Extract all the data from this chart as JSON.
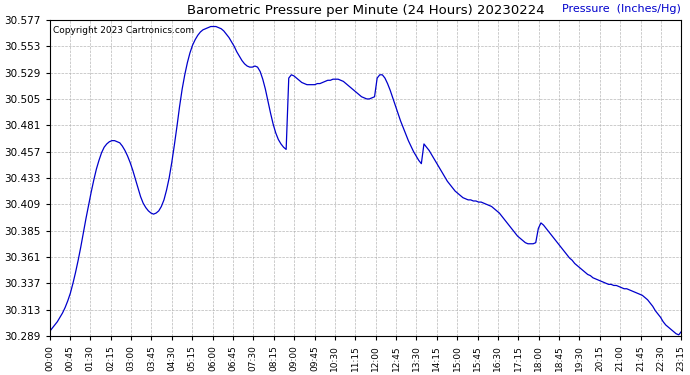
{
  "title": "Barometric Pressure per Minute (24 Hours) 20230224",
  "ylabel": "Pressure  (Inches/Hg)",
  "copyright_text": "Copyright 2023 Cartronics.com",
  "line_color": "#0000cc",
  "background_color": "#ffffff",
  "grid_color": "#b0b0b0",
  "ylim": [
    30.289,
    30.577
  ],
  "yticks": [
    30.289,
    30.313,
    30.337,
    30.361,
    30.385,
    30.409,
    30.433,
    30.457,
    30.481,
    30.505,
    30.529,
    30.553,
    30.577
  ],
  "xtick_labels": [
    "00:00",
    "00:45",
    "01:30",
    "02:15",
    "03:00",
    "03:45",
    "04:30",
    "05:15",
    "06:00",
    "06:45",
    "07:30",
    "08:15",
    "09:00",
    "09:45",
    "10:30",
    "11:15",
    "12:00",
    "12:45",
    "13:30",
    "14:15",
    "15:00",
    "15:45",
    "16:30",
    "17:15",
    "18:00",
    "18:45",
    "19:30",
    "20:15",
    "21:00",
    "21:45",
    "22:30",
    "23:15"
  ],
  "pressure_data": [
    30.293,
    30.296,
    30.299,
    30.302,
    30.306,
    30.31,
    30.315,
    30.321,
    30.328,
    30.337,
    30.347,
    30.358,
    30.37,
    30.383,
    30.396,
    30.408,
    30.42,
    30.431,
    30.441,
    30.449,
    30.456,
    30.461,
    30.464,
    30.466,
    30.467,
    30.467,
    30.466,
    30.465,
    30.462,
    30.458,
    30.453,
    30.447,
    30.44,
    30.432,
    30.424,
    30.416,
    30.41,
    30.406,
    30.403,
    30.401,
    30.4,
    30.401,
    30.403,
    30.407,
    30.413,
    30.422,
    30.433,
    30.447,
    30.463,
    30.48,
    30.498,
    30.514,
    30.527,
    30.538,
    30.547,
    30.554,
    30.559,
    30.563,
    30.566,
    30.568,
    30.569,
    30.57,
    30.571,
    30.571,
    30.571,
    30.57,
    30.569,
    30.567,
    30.564,
    30.561,
    30.557,
    30.553,
    30.548,
    30.544,
    30.54,
    30.537,
    30.535,
    30.534,
    30.534,
    30.535,
    30.534,
    30.53,
    30.523,
    30.514,
    30.503,
    30.492,
    30.482,
    30.474,
    30.468,
    30.464,
    30.461,
    30.459,
    30.524,
    30.527,
    30.526,
    30.524,
    30.522,
    30.52,
    30.519,
    30.518,
    30.518,
    30.518,
    30.518,
    30.519,
    30.519,
    30.52,
    30.521,
    30.522,
    30.522,
    30.523,
    30.523,
    30.523,
    30.522,
    30.521,
    30.519,
    30.517,
    30.515,
    30.513,
    30.511,
    30.509,
    30.507,
    30.506,
    30.505,
    30.505,
    30.506,
    30.507,
    30.524,
    30.527,
    30.527,
    30.524,
    30.519,
    30.513,
    30.506,
    30.499,
    30.492,
    30.485,
    30.479,
    30.473,
    30.467,
    30.462,
    30.457,
    30.453,
    30.449,
    30.446,
    30.464,
    30.461,
    30.458,
    30.454,
    30.45,
    30.446,
    30.442,
    30.438,
    30.434,
    30.43,
    30.427,
    30.424,
    30.421,
    30.419,
    30.417,
    30.415,
    30.414,
    30.413,
    30.413,
    30.412,
    30.412,
    30.411,
    30.411,
    30.41,
    30.409,
    30.408,
    30.407,
    30.405,
    30.403,
    30.401,
    30.398,
    30.395,
    30.392,
    30.389,
    30.386,
    30.383,
    30.38,
    30.378,
    30.376,
    30.374,
    30.373,
    30.373,
    30.373,
    30.374,
    30.387,
    30.392,
    30.39,
    30.387,
    30.384,
    30.381,
    30.378,
    30.375,
    30.372,
    30.369,
    30.366,
    30.363,
    30.36,
    30.358,
    30.355,
    30.353,
    30.351,
    30.349,
    30.347,
    30.345,
    30.344,
    30.342,
    30.341,
    30.34,
    30.339,
    30.338,
    30.337,
    30.336,
    30.336,
    30.335,
    30.335,
    30.334,
    30.333,
    30.332,
    30.332,
    30.331,
    30.33,
    30.329,
    30.328,
    30.327,
    30.326,
    30.324,
    30.322,
    30.319,
    30.316,
    30.312,
    30.309,
    30.306,
    30.302,
    30.299,
    30.297,
    30.295,
    30.293,
    30.291,
    30.29,
    30.293
  ]
}
